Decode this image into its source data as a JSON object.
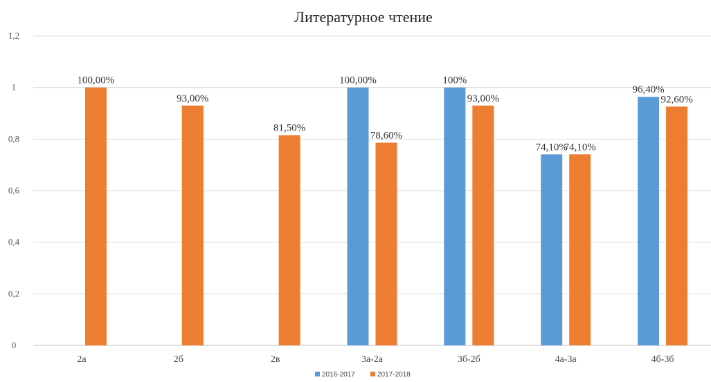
{
  "chart_data": {
    "type": "bar",
    "title": "Литературное чтение",
    "xlabel": "",
    "ylabel": "",
    "ylim": [
      0,
      1.2
    ],
    "y_ticks": [
      0,
      0.2,
      0.4,
      0.6,
      0.8,
      1,
      1.2
    ],
    "y_tick_labels": [
      "0",
      "0,2",
      "0,4",
      "0,6",
      "0,8",
      "1",
      "1,2"
    ],
    "grid": true,
    "legend_position": "bottom",
    "categories": [
      "2а",
      "2б",
      "2в",
      "3а-2а",
      "3б-2б",
      "4а-3а",
      "4б-3б"
    ],
    "series": [
      {
        "name": "2016-2017",
        "color": "#5b9bd5",
        "values": [
          null,
          null,
          null,
          1.0,
          1.0,
          0.741,
          0.964
        ],
        "labels": [
          "",
          "",
          "",
          "100,00%",
          "100%",
          "74,10%",
          "96,40%"
        ]
      },
      {
        "name": "2017-2018",
        "color": "#ed7d31",
        "values": [
          1.0,
          0.93,
          0.815,
          0.786,
          0.93,
          0.741,
          0.926
        ],
        "labels": [
          "100,00%",
          "93,00%",
          "81,50%",
          "78,60%",
          "93,00%",
          "74,10%",
          "92,60%"
        ]
      }
    ]
  }
}
